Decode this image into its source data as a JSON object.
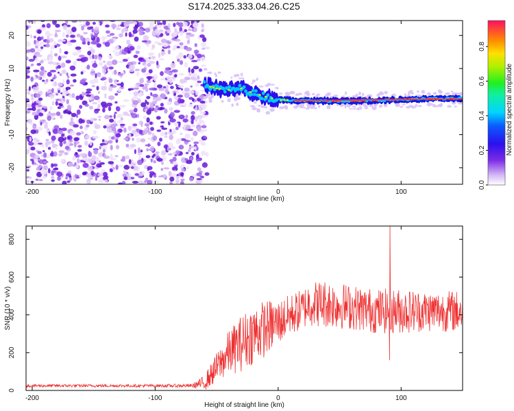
{
  "page": {
    "title": "S174.2025.333.04.26.C25"
  },
  "chart_data": [
    {
      "type": "heatmap",
      "name": "spectrogram",
      "xlabel": "Height of straight line (km)",
      "ylabel": "Frequency (Hz)",
      "xlim": [
        -205,
        150
      ],
      "ylim": [
        -25,
        24.5
      ],
      "xticks": [
        -200,
        -100,
        0,
        100
      ],
      "xtick_labels": [
        "-200",
        "-100",
        "0",
        "100"
      ],
      "yticks": [
        -20,
        -10,
        0,
        10,
        20
      ],
      "ytick_labels": [
        "-20",
        "-10",
        "0",
        "10",
        "20"
      ],
      "noise_region_x": [
        -205,
        -60
      ],
      "signal_band": {
        "x": [
          -60,
          -50,
          -40,
          -30,
          -20,
          -10,
          0,
          10,
          20,
          40,
          60,
          80,
          100,
          120,
          150
        ],
        "freq": [
          5,
          4,
          3.5,
          4,
          2.5,
          1.5,
          0.5,
          0.5,
          0.3,
          0.2,
          0.2,
          0.4,
          0.6,
          0.8,
          1.0
        ]
      }
    },
    {
      "type": "colorbar",
      "name": "amplitude-colorbar",
      "label": "Normalized spectral amplitude",
      "range": [
        0,
        0.95
      ],
      "ticks": [
        0.0,
        0.2,
        0.4,
        0.6,
        0.8
      ],
      "tick_labels": [
        "0.0",
        "0.2",
        "0.4",
        "0.6",
        "0.8"
      ]
    },
    {
      "type": "line",
      "name": "snr-trace",
      "xlabel": "Height of straight line (km)",
      "ylabel": "SNR (10 * v/v)",
      "xlim": [
        -205,
        150
      ],
      "ylim": [
        0,
        870
      ],
      "xticks": [
        -200,
        -100,
        0,
        100
      ],
      "xtick_labels": [
        "-200",
        "-100",
        "0",
        "100"
      ],
      "yticks": [
        0,
        200,
        400,
        600,
        800
      ],
      "ytick_labels": [
        "0",
        "200",
        "400",
        "600",
        "800"
      ],
      "color": "#ee3030",
      "x": [
        -205,
        -100,
        -70,
        -60,
        -50,
        -40,
        -30,
        -20,
        -10,
        0,
        10,
        20,
        25,
        40,
        60,
        80,
        100,
        120,
        150
      ],
      "y_mean": [
        25,
        25,
        25,
        40,
        120,
        200,
        250,
        300,
        330,
        360,
        400,
        430,
        460,
        460,
        440,
        420,
        420,
        420,
        420
      ],
      "y_spread": [
        8,
        8,
        10,
        40,
        80,
        120,
        150,
        160,
        150,
        120,
        110,
        110,
        120,
        130,
        120,
        120,
        120,
        110,
        110
      ],
      "peak": {
        "x": 91,
        "y": 870
      },
      "trough": {
        "x": 90,
        "y": 160
      }
    }
  ]
}
